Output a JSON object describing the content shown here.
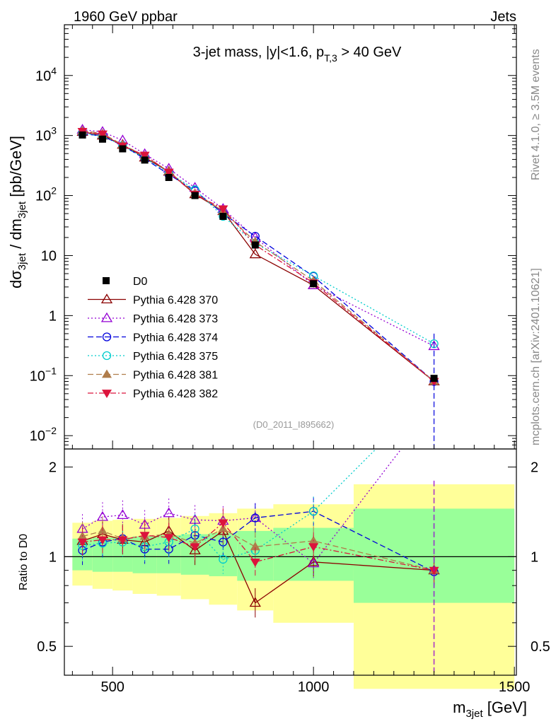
{
  "header": {
    "left": "1960 GeV ppbar",
    "right": "Jets",
    "rivet": "Rivet 4.1.0, ≥ 3.5M events",
    "mcplots": "mcplots.cern.ch [arXiv:2401.10621]",
    "analysis": "(D0_2011_I895662)"
  },
  "colors": {
    "data": "#000000",
    "p370": "#8b0000",
    "p373": "#9400d3",
    "p374": "#0000dd",
    "p375": "#00cccc",
    "p381": "#b07d4b",
    "p382": "#dc143c",
    "band_inner": "#99ff99",
    "band_outer": "#ffff99"
  },
  "chart_data": {
    "type": "line",
    "title_parts": {
      "main": "3-jet mass, |y|<1.6, p",
      "sub": "T,3",
      "tail": " > 40 GeV"
    },
    "xlabel": {
      "main": "m",
      "sub": "3jet",
      "unit": " [GeV]"
    },
    "ylabel": {
      "p1": "dσ",
      "s1": "3jet",
      "p2": " / dm",
      "s2": "3jet",
      "p3": " [pb/GeV]"
    },
    "ratio_ylabel": "Ratio to D0",
    "xlim": [
      380,
      1505
    ],
    "ylim_log": [
      0.006,
      70000
    ],
    "ratio_ylim": [
      0.4,
      2.3
    ],
    "x_ticks": [
      500,
      1000,
      1500
    ],
    "x_tick_labels": [
      "500",
      "1000",
      "1500"
    ],
    "y_ticks": [
      0.01,
      0.1,
      1,
      10,
      100,
      1000,
      10000
    ],
    "y_tick_labels": [
      {
        "base": "10",
        "exp": "−2"
      },
      {
        "base": "10",
        "exp": "−1"
      },
      {
        "base": "1",
        "exp": ""
      },
      {
        "base": "10",
        "exp": ""
      },
      {
        "base": "10",
        "exp": "2"
      },
      {
        "base": "10",
        "exp": "3"
      },
      {
        "base": "10",
        "exp": "4"
      }
    ],
    "ratio_ticks": [
      0.5,
      1,
      2
    ],
    "ratio_tick_labels": [
      "0.5",
      "1",
      "2"
    ],
    "bins": [
      [
        400,
        450
      ],
      [
        450,
        500
      ],
      [
        500,
        550
      ],
      [
        550,
        610
      ],
      [
        610,
        670
      ],
      [
        670,
        740
      ],
      [
        740,
        810
      ],
      [
        810,
        900
      ],
      [
        900,
        1100
      ],
      [
        1100,
        1500
      ]
    ],
    "x": [
      425,
      475,
      525,
      580,
      640,
      705,
      775,
      855,
      1000,
      1300
    ],
    "data": {
      "name": "D0",
      "values": [
        1020,
        870,
        600,
        390,
        200,
        100,
        45,
        15,
        3.4,
        0.09
      ]
    },
    "band_inner": [
      [
        0.9,
        1.15
      ],
      [
        0.89,
        1.16
      ],
      [
        0.89,
        1.16
      ],
      [
        0.88,
        1.17
      ],
      [
        0.88,
        1.18
      ],
      [
        0.87,
        1.19
      ],
      [
        0.86,
        1.2
      ],
      [
        0.83,
        1.22
      ],
      [
        0.83,
        1.25
      ],
      [
        0.7,
        1.45
      ]
    ],
    "band_outer": [
      [
        0.8,
        1.3
      ],
      [
        0.78,
        1.32
      ],
      [
        0.77,
        1.33
      ],
      [
        0.75,
        1.34
      ],
      [
        0.74,
        1.35
      ],
      [
        0.72,
        1.37
      ],
      [
        0.69,
        1.4
      ],
      [
        0.66,
        1.45
      ],
      [
        0.6,
        1.5
      ],
      [
        0.36,
        1.75
      ]
    ],
    "series": [
      {
        "key": "p370",
        "name": "Pythia 6.428 370",
        "marker": "tri-open",
        "dash": "",
        "values": [
          1150,
          1000,
          700,
          430,
          250,
          105,
          55,
          10.5,
          3.2,
          0.08
        ],
        "ratios": [
          1.13,
          1.19,
          1.14,
          1.12,
          1.22,
          1.05,
          1.22,
          0.7,
          0.96,
          0.9
        ]
      },
      {
        "key": "p373",
        "name": "Pythia 6.428 373",
        "marker": "tri-open",
        "dash": "2,3",
        "values": [
          1250,
          1150,
          830,
          490,
          280,
          135,
          60,
          20,
          3.2,
          0.31
        ],
        "ratios": [
          1.24,
          1.36,
          1.38,
          1.28,
          1.4,
          1.33,
          1.32,
          1.35,
          0.95,
          3.2
        ]
      },
      {
        "key": "p374",
        "name": "Pythia 6.428 374",
        "marker": "circ-open",
        "dash": "8,4",
        "values": [
          1070,
          980,
          680,
          410,
          225,
          120,
          50,
          21,
          4.5,
          0.08
        ],
        "ratios": [
          1.05,
          1.12,
          1.15,
          1.06,
          1.06,
          1.18,
          1.12,
          1.35,
          1.42,
          0.89
        ]
      },
      {
        "key": "p375",
        "name": "Pythia 6.428 375",
        "marker": "circ-open",
        "dash": "2,3",
        "values": [
          1100,
          970,
          680,
          420,
          240,
          125,
          45,
          16,
          4.6,
          0.34
        ],
        "ratios": [
          1.09,
          1.11,
          1.12,
          1.08,
          1.12,
          1.24,
          0.98,
          1.05,
          1.42,
          3.6
        ]
      },
      {
        "key": "p381",
        "name": "Pythia 6.428 381",
        "marker": "tri-fill",
        "dash": "8,4",
        "values": [
          1200,
          1080,
          700,
          460,
          250,
          110,
          55,
          17,
          3.8,
          0.08
        ],
        "ratios": [
          1.17,
          1.22,
          1.15,
          1.17,
          1.19,
          1.11,
          1.24,
          1.08,
          1.13,
          0.9
        ]
      },
      {
        "key": "p382",
        "name": "Pythia 6.428 382",
        "marker": "tri-down",
        "dash": "8,3,2,3",
        "values": [
          1170,
          1060,
          670,
          470,
          245,
          105,
          60,
          15,
          3.5,
          0.08
        ],
        "ratios": [
          1.12,
          1.14,
          1.14,
          1.18,
          1.16,
          1.08,
          1.3,
          0.96,
          1.08,
          0.9
        ]
      }
    ],
    "legend_placement": "middle-left"
  }
}
